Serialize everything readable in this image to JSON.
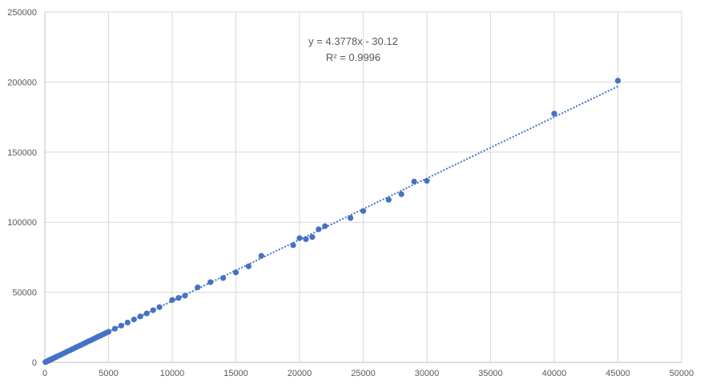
{
  "chart_data": {
    "type": "scatter",
    "title": "",
    "xlabel": "",
    "ylabel": "",
    "xlim": [
      0,
      50000
    ],
    "ylim": [
      0,
      250000
    ],
    "x_ticks": [
      "0",
      "5000",
      "10000",
      "15000",
      "20000",
      "25000",
      "30000",
      "35000",
      "40000",
      "45000",
      "50000"
    ],
    "y_ticks": [
      "0",
      "50000",
      "100000",
      "150000",
      "200000",
      "250000"
    ],
    "grid": true,
    "legend": "none",
    "marker_color": "#4472c4",
    "trendline": {
      "type": "linear",
      "slope": 4.3778,
      "intercept": -30.12,
      "r_squared": 0.9996,
      "equation_label": "y = 4.3778x - 30.12",
      "r2_label": "R² = 0.9996",
      "style": "dotted",
      "x_range": [
        0,
        45000
      ]
    },
    "series": [
      {
        "x": [
          50,
          100,
          150,
          200,
          250,
          300,
          350,
          400,
          450,
          500,
          600,
          700,
          800,
          900,
          1000,
          1200,
          1400,
          1600,
          1800,
          2000,
          2200,
          2400,
          2600,
          2800,
          3000,
          3200,
          3400,
          3600,
          3800,
          4000,
          4200,
          4400,
          4600,
          4800,
          5000,
          5500,
          6000,
          6500,
          7000,
          7500,
          8000,
          8500,
          9000,
          10000,
          10500,
          11000,
          12000,
          13000,
          14000,
          15000,
          16000,
          17000,
          19500,
          20000,
          20500,
          21000,
          21500,
          22000,
          24000,
          25000,
          27000,
          28000,
          29000,
          30000,
          40000,
          45000
        ],
        "y": [
          200,
          450,
          650,
          850,
          1100,
          1300,
          1550,
          1750,
          1950,
          2200,
          2600,
          3000,
          3500,
          3900,
          4400,
          5200,
          6100,
          7000,
          7900,
          8700,
          9600,
          10500,
          11400,
          12200,
          13100,
          14000,
          14900,
          15700,
          16600,
          17500,
          18400,
          19200,
          20100,
          21000,
          21800,
          24000,
          26200,
          28400,
          30600,
          32800,
          34900,
          37200,
          39400,
          44500,
          46000,
          47600,
          53500,
          57200,
          60200,
          64200,
          68500,
          76000,
          83600,
          88600,
          87900,
          89400,
          95000,
          97200,
          103000,
          108000,
          116000,
          120000,
          129000,
          129500,
          177500,
          201000
        ]
      }
    ]
  }
}
